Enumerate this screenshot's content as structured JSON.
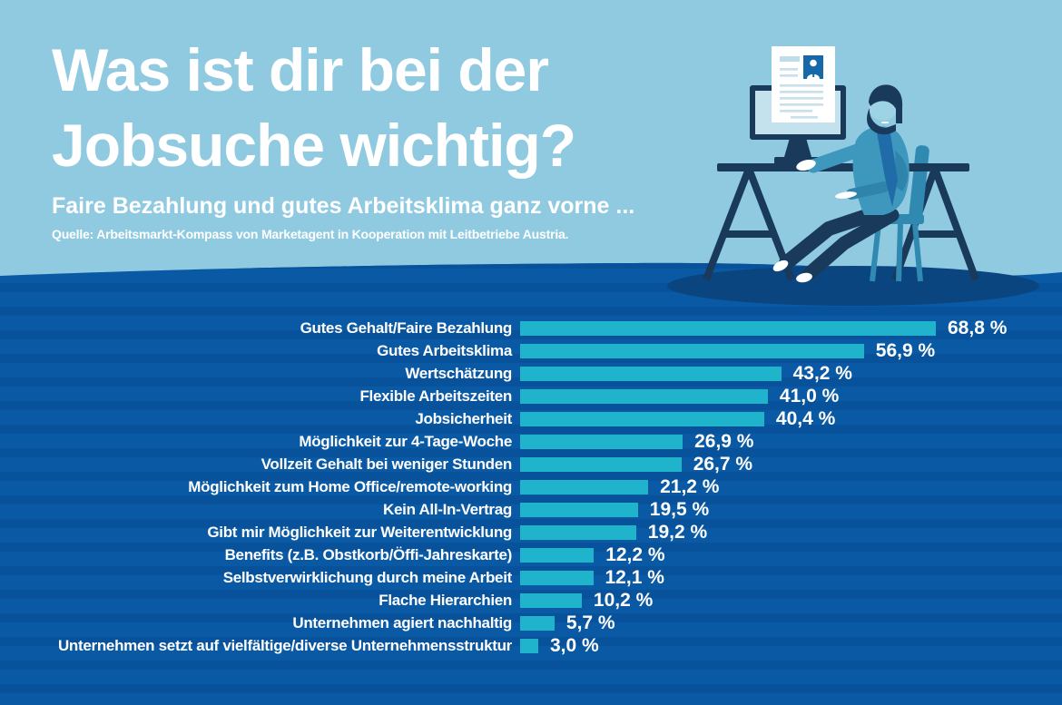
{
  "header": {
    "title_line1": "Was ist dir bei der",
    "title_line2": "Jobsuche wichtig?",
    "subtitle": "Faire Bezahlung und gutes Arbeitsklima ganz vorne ...",
    "source": "Quelle: Arbeitsmarkt-Kompass von Marketagent in Kooperation mit Leitbetriebe Austria."
  },
  "illustration": {
    "description": "man-with-beard-at-trestle-desk-pointing-at-cv-document-on-monitor"
  },
  "colors": {
    "top_background": "#8FCAE1",
    "bottom_background": "#0A59A4",
    "bottom_stripe": "#08519B",
    "bar_fill": "#1FB3CC",
    "text": "#FFFFFF",
    "illustration_navy": "#1A3A5C",
    "illustration_shirt": "#3E97BD",
    "illustration_shadow": "#0A4580"
  },
  "chart_data": {
    "type": "bar",
    "orientation": "horizontal",
    "title": "Was ist dir bei der Jobsuche wichtig?",
    "subtitle": "Faire Bezahlung und gutes Arbeitsklima ganz vorne ...",
    "unit": "%",
    "decimal_separator": ",",
    "xlim": [
      0,
      100
    ],
    "grid": false,
    "legend": false,
    "categories": [
      "Gutes Gehalt/Faire Bezahlung",
      "Gutes Arbeitsklima",
      "Wertschätzung",
      "Flexible Arbeitszeiten",
      "Jobsicherheit",
      "Möglichkeit zur 4-Tage-Woche",
      "Vollzeit Gehalt bei weniger Stunden",
      "Möglichkeit zum Home Office/remote-working",
      "Kein All-In-Vertrag",
      "Gibt mir Möglichkeit zur Weiterentwicklung",
      "Benefits (z.B. Obstkorb/Öffi-Jahreskarte)",
      "Selbstverwirklichung durch meine Arbeit",
      "Flache Hierarchien",
      "Unternehmen agiert nachhaltig",
      "Unternehmen setzt auf vielfältige/diverse Unternehmensstruktur"
    ],
    "values": [
      68.8,
      56.9,
      43.2,
      41.0,
      40.4,
      26.9,
      26.7,
      21.2,
      19.5,
      19.2,
      12.2,
      12.1,
      10.2,
      5.7,
      3.0
    ],
    "value_labels": [
      "68,8 %",
      "56,9 %",
      "43,2 %",
      "41,0 %",
      "40,4 %",
      "26,9 %",
      "26,7 %",
      "21,2 %",
      "19,5 %",
      "19,2 %",
      "12,2 %",
      "12,1 %",
      "10,2 %",
      "5,7 %",
      "3,0 %"
    ]
  }
}
